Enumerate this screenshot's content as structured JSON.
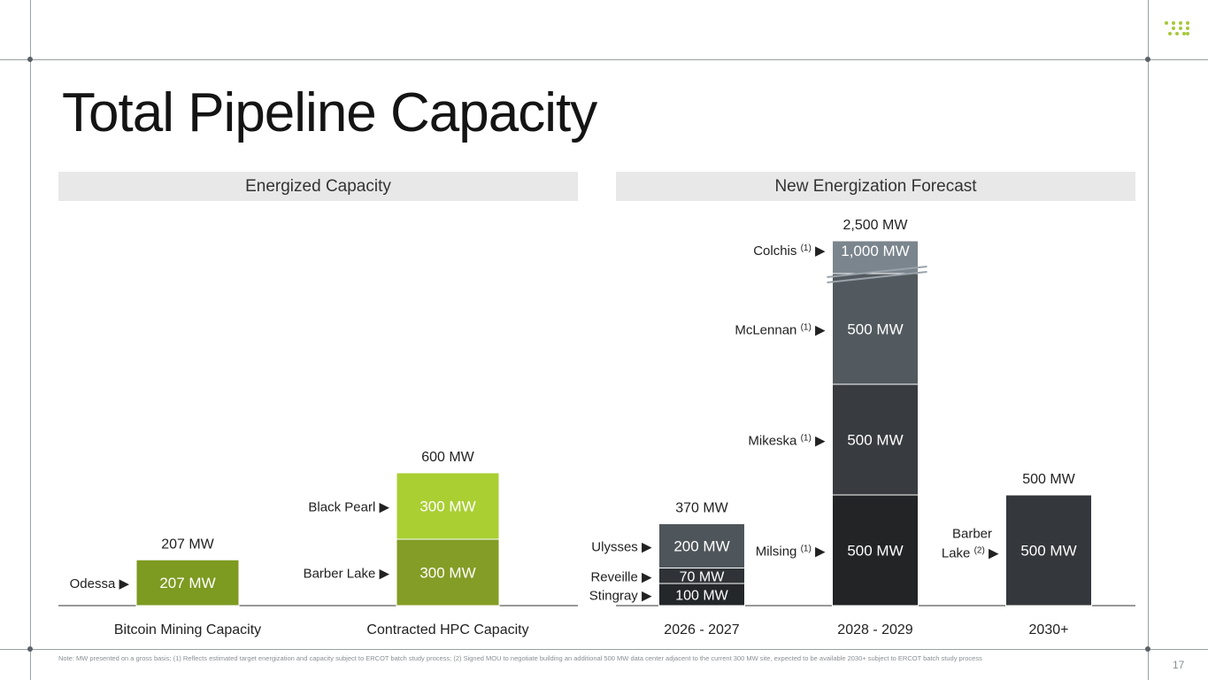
{
  "page": {
    "title": "Total Pipeline Capacity",
    "page_number": "17",
    "footnote": "Note: MW presented on a gross basis; (1) Reflects estimated target energization and capacity subject to ERCOT batch study process; (2) Signed MOU to negotiate building an additional 500 MW data center adjacent to the current 300 MW site, expected to be available 2030+ subject to ERCOT batch study process",
    "brand_color": "#a6c83a"
  },
  "panels": {
    "left_header": "Energized Capacity",
    "right_header": "New Energization Forecast"
  },
  "chart_data": [
    {
      "type": "bar",
      "stacked": true,
      "title": "Energized Capacity",
      "categories": [
        "Bitcoin Mining Capacity",
        "Contracted HPC Capacity"
      ],
      "totals": [
        "207 MW",
        "600 MW"
      ],
      "bars": [
        {
          "category": "Bitcoin Mining Capacity",
          "segments": [
            {
              "name": "Odessa",
              "value": 207,
              "label": "207 MW",
              "color": "#7d9a21"
            }
          ]
        },
        {
          "category": "Contracted HPC Capacity",
          "segments": [
            {
              "name": "Barber Lake",
              "value": 300,
              "label": "300 MW",
              "color": "#849d26"
            },
            {
              "name": "Black Pearl",
              "value": 300,
              "label": "300 MW",
              "color": "#a9cf33"
            }
          ]
        }
      ]
    },
    {
      "type": "bar",
      "stacked": true,
      "title": "New Energization Forecast",
      "categories": [
        "2026 - 2027",
        "2028 - 2029",
        "2030+"
      ],
      "totals": [
        "370 MW",
        "2,500 MW",
        "500 MW"
      ],
      "axis_break": {
        "category": "2028 - 2029",
        "segment": "Colchis"
      },
      "bars": [
        {
          "category": "2026 - 2027",
          "segments": [
            {
              "name": "Stingray",
              "value": 100,
              "label": "100 MW",
              "color": "#24272a"
            },
            {
              "name": "Reveille",
              "value": 70,
              "label": "70 MW",
              "color": "#2f3337"
            },
            {
              "name": "Ulysses",
              "value": 200,
              "label": "200 MW",
              "color": "#4f565b"
            }
          ]
        },
        {
          "category": "2028 - 2029",
          "segments": [
            {
              "name": "Milsing",
              "note": "(1)",
              "value": 500,
              "label": "500 MW",
              "color": "#222426"
            },
            {
              "name": "Mikeska",
              "note": "(1)",
              "value": 500,
              "label": "500 MW",
              "color": "#383b3f"
            },
            {
              "name": "McLennan",
              "note": "(1)",
              "value": 500,
              "label": "500 MW",
              "color": "#525a5f"
            },
            {
              "name": "Colchis",
              "note": "(1)",
              "value": 1000,
              "label": "1,000 MW",
              "color": "#7b858d"
            }
          ]
        },
        {
          "category": "2030+",
          "segments": [
            {
              "name": "Barber Lake",
              "note": "(2)",
              "value": 500,
              "label": "500 MW",
              "color": "#34373b"
            }
          ]
        }
      ]
    }
  ]
}
